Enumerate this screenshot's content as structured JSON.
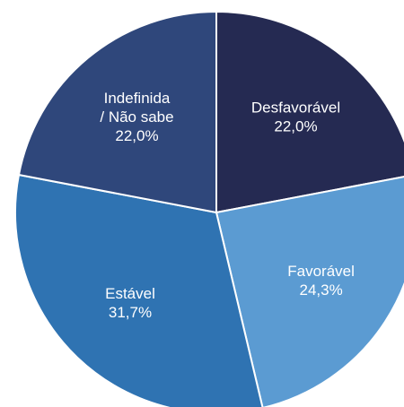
{
  "chart_data": {
    "type": "pie",
    "start_angle_deg": 0,
    "direction": "clockwise",
    "slices": [
      {
        "label_lines": [
          "Desfavorável"
        ],
        "value": 22.0,
        "value_label": "22,0%",
        "color": "#252A52"
      },
      {
        "label_lines": [
          "Favorável"
        ],
        "value": 24.3,
        "value_label": "24,3%",
        "color": "#5B9BD2"
      },
      {
        "label_lines": [
          "Estável"
        ],
        "value": 31.7,
        "value_label": "31,7%",
        "color": "#2F73B2"
      },
      {
        "label_lines": [
          "Indefinida",
          "/ Não sabe"
        ],
        "value": 22.0,
        "value_label": "22,0%",
        "color": "#2F477B"
      }
    ]
  }
}
